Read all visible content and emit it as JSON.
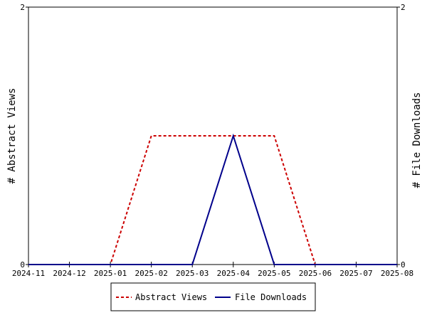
{
  "chart_data": {
    "type": "line",
    "x": [
      "2024-11",
      "2024-12",
      "2025-01",
      "2025-02",
      "2025-03",
      "2025-04",
      "2025-05",
      "2025-06",
      "2025-07",
      "2025-08"
    ],
    "x_tick_labels": [
      "2024-11",
      "2024-12",
      "2025-01",
      "2025-02",
      "2025-03",
      "2025-04",
      "2025-05",
      "2025-06",
      "2025-07",
      "2025-08"
    ],
    "series": [
      {
        "name": "Abstract Views",
        "axis": "left",
        "color": "#cc0000",
        "dash": "dashed",
        "values": [
          0,
          0,
          0,
          1,
          1,
          1,
          1,
          0,
          0,
          0
        ]
      },
      {
        "name": "File Downloads",
        "axis": "right",
        "color": "#00008b",
        "dash": "solid",
        "values": [
          0,
          0,
          0,
          0,
          0,
          1,
          0,
          0,
          0,
          0
        ]
      }
    ],
    "ylabel_left": "# Abstract Views",
    "ylabel_right": "# File Downloads",
    "ylim_left": [
      0,
      2
    ],
    "ylim_right": [
      0,
      2
    ],
    "y_tick_labels_left": [
      "0",
      "2"
    ],
    "y_tick_labels_right": [
      "0",
      "2"
    ],
    "legend_position": "bottom-center",
    "grid": false
  }
}
